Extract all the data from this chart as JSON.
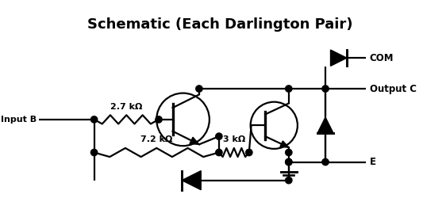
{
  "title": "Schematic (Each Darlington Pair)",
  "title_fontsize": 13,
  "labels": {
    "input_b": "Input B",
    "com": "COM",
    "output_c": "Output C",
    "e": "E",
    "r1": "2.7 kΩ",
    "r2": "7.2 kΩ",
    "r3": "3 kΩ"
  },
  "background": "#ffffff",
  "line_color": "#000000",
  "lw": 1.6
}
